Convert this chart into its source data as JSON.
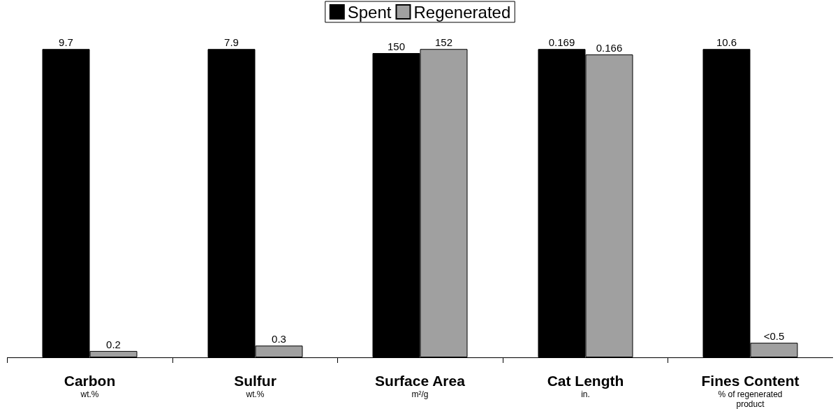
{
  "chart_data": [
    {
      "type": "bar",
      "categories": [
        "Carbon\nwt.%"
      ],
      "data_labels": true,
      "series": [
        {
          "color": "#000000",
          "values": [
            9.7
          ]
        },
        {
          "color": "#a0a0a0",
          "values": [
            0.2
          ]
        }
      ]
    },
    {
      "type": "bar",
      "categories": [
        "Sulfur\nwt.%"
      ],
      "data_labels": true,
      "series": [
        {
          "color": "#000000",
          "values": [
            7.9
          ]
        },
        {
          "color": "#a0a0a0",
          "values": [
            0.3
          ]
        }
      ]
    },
    {
      "type": "bar",
      "categories": [
        "Surface Area\nm²/g"
      ],
      "data_labels": true,
      "legend": "top",
      "series": [
        {
          "name": "Spent",
          "color": "#000000",
          "values": [
            150
          ]
        },
        {
          "name": "Regenerated",
          "color": "#a0a0a0",
          "values": [
            152
          ]
        }
      ]
    },
    {
      "type": "bar",
      "categories": [
        "Cat Length\nin."
      ],
      "data_labels": true,
      "series": [
        {
          "color": "#000000",
          "values": [
            0.169
          ]
        },
        {
          "color": "#a0a0a0",
          "values": [
            0.166
          ]
        }
      ]
    },
    {
      "type": "bar",
      "categories": [
        "Fines Content\n% of regenerated\nproduct"
      ],
      "series": [
        {
          "color": "#000000",
          "values": [
            10.6
          ],
          "value_labels": [
            "10.6"
          ]
        },
        {
          "color": "#a0a0a0",
          "values": [
            0.5
          ],
          "value_labels": [
            "<0.5"
          ]
        }
      ]
    }
  ]
}
